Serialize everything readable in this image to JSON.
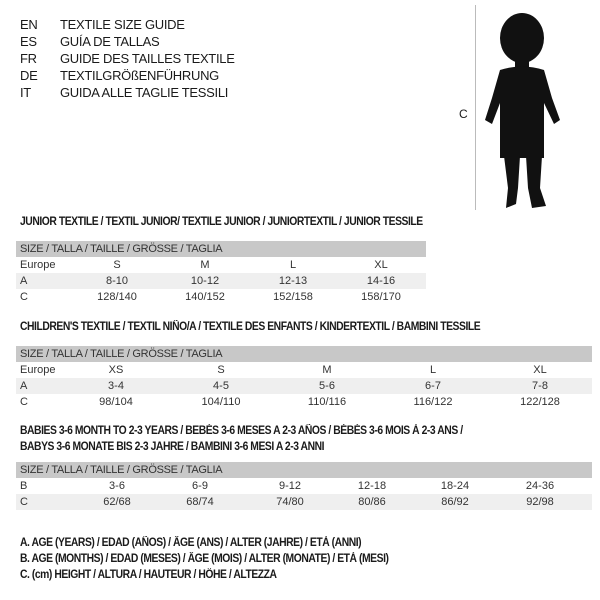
{
  "languages": [
    {
      "code": "EN",
      "title": "TEXTILE SIZE GUIDE"
    },
    {
      "code": "ES",
      "title": "GUÍA DE TALLAS"
    },
    {
      "code": "FR",
      "title": "GUIDE DES TAILLES TEXTILE"
    },
    {
      "code": "DE",
      "title": "TEXTILGRÖßENFÜHRUNG"
    },
    {
      "code": "IT",
      "title": "GUIDA ALLE TAGLIE TESSILI"
    }
  ],
  "figure": {
    "label": "C"
  },
  "junior": {
    "title": "JUNIOR TEXTILE / TEXTIL JUNIOR/ TEXTILE JUNIOR / JUNIORTEXTIL / JUNIOR TESSILE",
    "header": "SIZE / TALLA / TAILLE / GRÖSSE / TAGLIA",
    "rows": [
      {
        "label": "Europe",
        "cells": [
          "S",
          "M",
          "L",
          "XL"
        ]
      },
      {
        "label": "A",
        "cells": [
          "8-10",
          "10-12",
          "12-13",
          "14-16"
        ]
      },
      {
        "label": "C",
        "cells": [
          "128/140",
          "140/152",
          "152/158",
          "158/170"
        ]
      }
    ]
  },
  "children": {
    "title": "CHILDREN'S TEXTILE / TEXTIL NIÑO/A / TEXTILE DES ENFANTS / KINDERTEXTIL / BAMBINI TESSILE",
    "header": "SIZE / TALLA / TAILLE / GRÖSSE / TAGLIA",
    "rows": [
      {
        "label": "Europe",
        "cells": [
          "XS",
          "S",
          "M",
          "L",
          "XL"
        ]
      },
      {
        "label": "A",
        "cells": [
          "3-4",
          "4-5",
          "5-6",
          "6-7",
          "7-8"
        ]
      },
      {
        "label": "C",
        "cells": [
          "98/104",
          "104/110",
          "110/116",
          "116/122",
          "122/128"
        ]
      }
    ]
  },
  "babies": {
    "title1": "BABIES 3-6 MONTH TO 2-3 YEARS / BEBÉS 3-6 MESES A 2-3 AÑOS / BÉBÉS 3-6 MOIS À 2-3 ANS /",
    "title2": "BABYS 3-6 MONATE BIS 2-3 JAHRE / BAMBINI 3-6 MESI A 2-3 ANNI",
    "header": "SIZE / TALLA / TAILLE / GRÖSSE / TAGLIA",
    "rows": [
      {
        "label": "B",
        "cells": [
          "3-6",
          "6-9",
          "9-12",
          "12-18",
          "18-24",
          "24-36"
        ]
      },
      {
        "label": "C",
        "cells": [
          "62/68",
          "68/74",
          "74/80",
          "80/86",
          "86/92",
          "92/98"
        ]
      }
    ]
  },
  "legend": [
    "A. AGE (YEARS) / EDAD (AÑOS) / ÂGE (ANS) / ALTER (JAHRE) / ETÀ (ANNI)",
    "B. AGE (MONTHS) / EDAD (MESES) / ÂGE (MOIS) / ALTER (MONATE) / ETÀ (MESI)",
    "C. (cm) HEIGHT / ALTURA / HAUTEUR / HÖHE / ALTEZZA"
  ]
}
